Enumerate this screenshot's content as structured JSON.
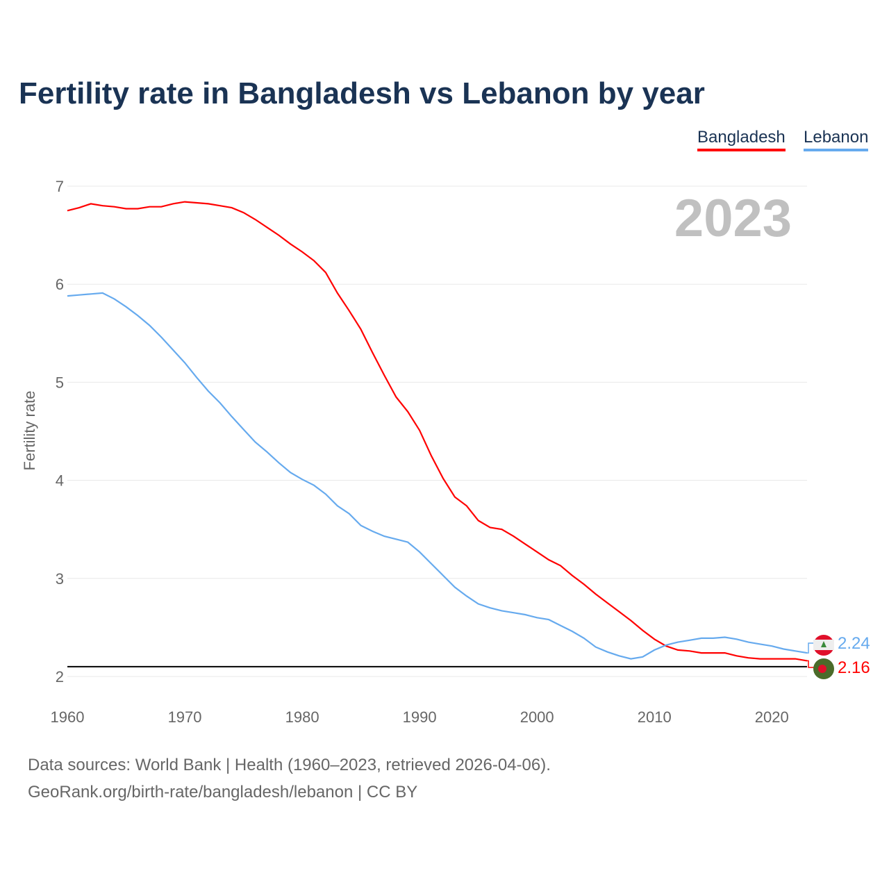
{
  "chart_data": {
    "type": "line",
    "title": "Fertility rate in Bangladesh vs Lebanon by year",
    "ylabel": "Fertility rate",
    "xlabel": "",
    "year_label": "2023",
    "xlim": [
      1960,
      2023
    ],
    "ylim": [
      2,
      7
    ],
    "x_ticks": [
      1960,
      1970,
      1980,
      1990,
      2000,
      2010,
      2020
    ],
    "y_ticks": [
      2,
      3,
      4,
      5,
      6,
      7
    ],
    "reference_line": 2.1,
    "grid": true,
    "legend_position": "top-right",
    "x_start": 1960,
    "series": [
      {
        "name": "Bangladesh",
        "color": "#ff0000",
        "end_label": "2.16",
        "values": [
          6.75,
          6.78,
          6.82,
          6.8,
          6.79,
          6.77,
          6.77,
          6.79,
          6.79,
          6.82,
          6.84,
          6.83,
          6.82,
          6.8,
          6.78,
          6.73,
          6.66,
          6.58,
          6.5,
          6.41,
          6.33,
          6.24,
          6.12,
          5.91,
          5.73,
          5.54,
          5.3,
          5.07,
          4.85,
          4.7,
          4.51,
          4.25,
          4.02,
          3.83,
          3.74,
          3.59,
          3.52,
          3.5,
          3.43,
          3.35,
          3.27,
          3.19,
          3.13,
          3.03,
          2.94,
          2.84,
          2.75,
          2.66,
          2.57,
          2.47,
          2.38,
          2.31,
          2.27,
          2.26,
          2.24,
          2.24,
          2.24,
          2.21,
          2.19,
          2.18,
          2.18,
          2.18,
          2.18,
          2.16
        ]
      },
      {
        "name": "Lebanon",
        "color": "#66aaee",
        "end_label": "2.24",
        "values": [
          5.88,
          5.89,
          5.9,
          5.91,
          5.85,
          5.77,
          5.68,
          5.58,
          5.46,
          5.33,
          5.2,
          5.05,
          4.91,
          4.79,
          4.65,
          4.52,
          4.39,
          4.29,
          4.18,
          4.08,
          4.01,
          3.95,
          3.86,
          3.74,
          3.66,
          3.54,
          3.48,
          3.43,
          3.4,
          3.37,
          3.27,
          3.15,
          3.03,
          2.91,
          2.82,
          2.74,
          2.7,
          2.67,
          2.65,
          2.63,
          2.6,
          2.58,
          2.52,
          2.46,
          2.39,
          2.3,
          2.25,
          2.21,
          2.18,
          2.2,
          2.27,
          2.32,
          2.35,
          2.37,
          2.39,
          2.39,
          2.4,
          2.38,
          2.35,
          2.33,
          2.31,
          2.28,
          2.26,
          2.24
        ]
      }
    ]
  },
  "footer": {
    "line1": "Data sources: World Bank | Health (1960–2023, retrieved 2026-04-06).",
    "line2": "GeoRank.org/birth-rate/bangladesh/lebanon | CC BY"
  }
}
